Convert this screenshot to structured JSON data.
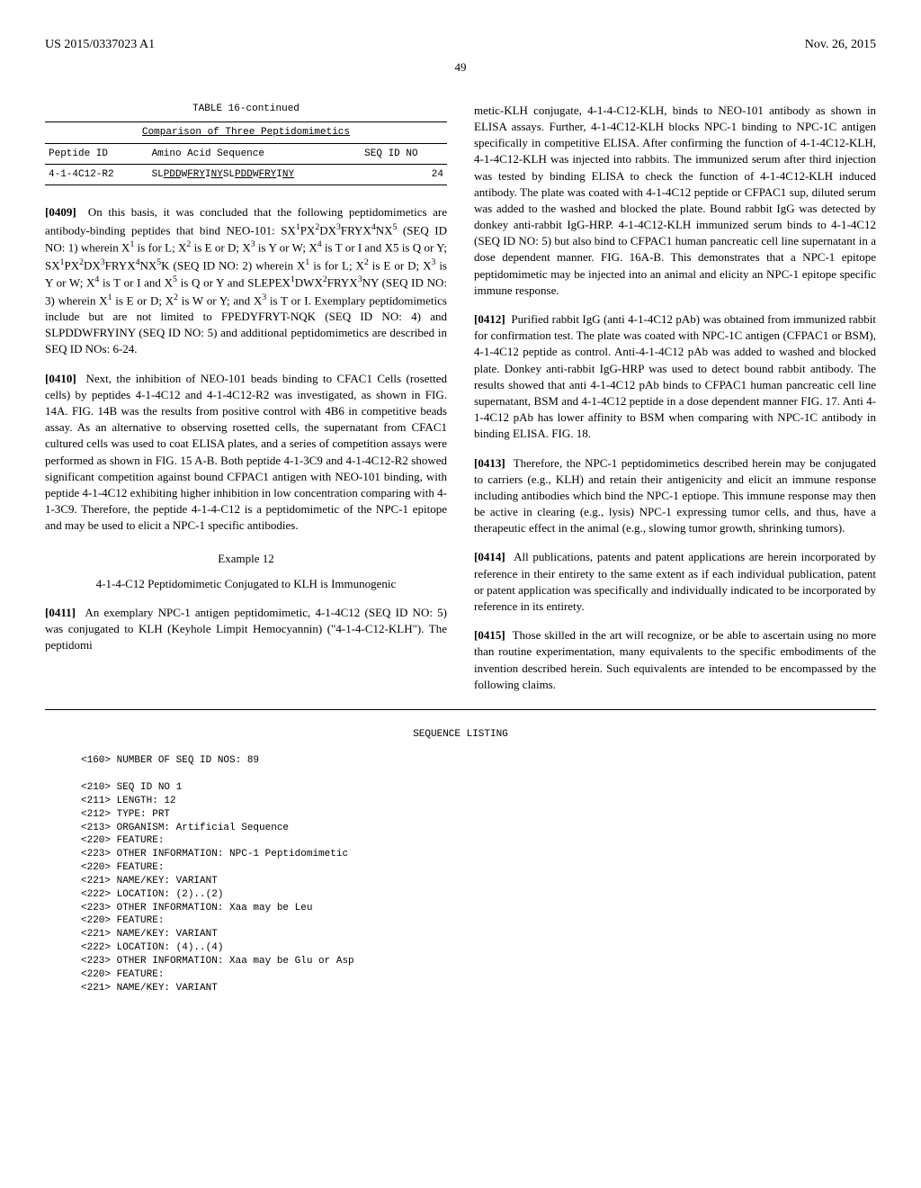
{
  "header": {
    "pub_number": "US 2015/0337023 A1",
    "pub_date": "Nov. 26, 2015",
    "page": "49"
  },
  "table16": {
    "title": "TABLE 16-continued",
    "caption": "Comparison of Three Peptidomimetics",
    "col1": "Peptide ID",
    "col2": "Amino Acid Sequence",
    "col3": "SEQ ID NO",
    "row_id": "4-1-4C12-R2",
    "row_seq_prefix": "SL",
    "row_seq_u1": "PDD",
    "row_seq_mid1": "W",
    "row_seq_u2": "FRY",
    "row_seq_mid2": "I",
    "row_seq_u3": "NY",
    "row_seq_mid3": "SL",
    "row_seq_u4": "PDD",
    "row_seq_mid4": "W",
    "row_seq_u5": "FRY",
    "row_seq_mid5": "I",
    "row_seq_u6": "NY",
    "row_no": "24"
  },
  "p0409": {
    "num": "[0409]",
    "t1": "On this basis, it was concluded that the following peptidomimetics are antibody-binding peptides that bind NEO-101: SX",
    "t2": "PX",
    "t3": "DX",
    "t4": "FRYX",
    "t5": "NX",
    "t6": " (SEQ ID NO: 1) wherein X",
    "t7": " is for L; X",
    "t8": " is E or D; X",
    "t9": " is Y or W; X",
    "t10": " is T or I and X5 is Q or Y; SX",
    "t11": "PX",
    "t12": "DX",
    "t13": "FRYX",
    "t14": "NX",
    "t15": "K (SEQ ID NO: 2) wherein X",
    "t16": " is for L; X",
    "t17": " is E or D; X",
    "t18": " is Y or W; X",
    "t19": " is T or I and X",
    "t20": " is Q or Y and SLEPEX",
    "t21": "DWX",
    "t22": "FRYX",
    "t23": "NY (SEQ ID NO: 3) wherein X",
    "t24": " is E or D; X",
    "t25": " is W or Y; and X",
    "t26": " is T or I. Exemplary peptidomimetics include but are not limited to FPEDYFRYT-NQK (SEQ ID NO: 4) and SLPDDWFRYINY (SEQ ID NO: 5) and additional peptidomimetics are described in SEQ ID NOs: 6-24."
  },
  "p0410": {
    "num": "[0410]",
    "text": "Next, the inhibition of NEO-101 beads binding to CFAC1 Cells (rosetted cells) by peptides 4-1-4C12 and 4-1-4C12-R2 was investigated, as shown in FIG. 14A. FIG. 14B was the results from positive control with 4B6 in competitive beads assay. As an alternative to observing rosetted cells, the supernatant from CFAC1 cultured cells was used to coat ELISA plates, and a series of competition assays were performed as shown in FIG. 15 A-B. Both peptide 4-1-3C9 and 4-1-4C12-R2 showed significant competition against bound CFPAC1 antigen with NEO-101 binding, with peptide 4-1-4C12 exhibiting higher inhibition in low concentration comparing with 4-1-3C9. Therefore, the peptide 4-1-4-C12 is a peptidomimetic of the NPC-1 epitope and may be used to elicit a NPC-1 specific antibodies."
  },
  "example12": {
    "label": "Example 12",
    "title": "4-1-4-C12 Peptidomimetic Conjugated to KLH is Immunogenic"
  },
  "p0411": {
    "num": "[0411]",
    "text": "An exemplary NPC-1 antigen peptidomimetic, 4-1-4C12 (SEQ ID NO: 5) was conjugated to KLH (Keyhole Limpit Hemocyannin) (\"4-1-4-C12-KLH\"). The peptidomi"
  },
  "p0411b": {
    "text": "metic-KLH conjugate, 4-1-4-C12-KLH, binds to NEO-101 antibody as shown in ELISA assays. Further, 4-1-4C12-KLH blocks NPC-1 binding to NPC-1C antigen specifically in competitive ELISA. After confirming the function of 4-1-4C12-KLH, 4-1-4C12-KLH was injected into rabbits. The immunized serum after third injection was tested by binding ELISA to check the function of 4-1-4C12-KLH induced antibody. The plate was coated with 4-1-4C12 peptide or CFPAC1 sup, diluted serum was added to the washed and blocked the plate. Bound rabbit IgG was detected by donkey anti-rabbit IgG-HRP. 4-1-4C12-KLH immunized serum binds to 4-1-4C12 (SEQ ID NO: 5) but also bind to CFPAC1 human pancreatic cell line supernatant in a dose dependent manner. FIG. 16A-B. This demonstrates that a NPC-1 epitope peptidomimetic may be injected into an animal and elicity an NPC-1 epitope specific immune response."
  },
  "p0412": {
    "num": "[0412]",
    "text": "Purified rabbit IgG (anti 4-1-4C12 pAb) was obtained from immunized rabbit for confirmation test. The plate was coated with NPC-1C antigen (CFPAC1 or BSM), 4-1-4C12 peptide as control. Anti-4-1-4C12 pAb was added to washed and blocked plate. Donkey anti-rabbit IgG-HRP was used to detect bound rabbit antibody. The results showed that anti 4-1-4C12 pAb binds to CFPAC1 human pancreatic cell line supernatant, BSM and 4-1-4C12 peptide in a dose dependent manner FIG. 17. Anti 4-1-4C12 pAb has lower affinity to BSM when comparing with NPC-1C antibody in binding ELISA. FIG. 18."
  },
  "p0413": {
    "num": "[0413]",
    "text": "Therefore, the NPC-1 peptidomimetics described herein may be conjugated to carriers (e.g., KLH) and retain their antigenicity and elicit an immune response including antibodies which bind the NPC-1 eptiope. This immune response may then be active in clearing (e.g., lysis) NPC-1 expressing tumor cells, and thus, have a therapeutic effect in the animal (e.g., slowing tumor growth, shrinking tumors)."
  },
  "p0414": {
    "num": "[0414]",
    "text": "All publications, patents and patent applications are herein incorporated by reference in their entirety to the same extent as if each individual publication, patent or patent application was specifically and individually indicated to be incorporated by reference in its entirety."
  },
  "p0415": {
    "num": "[0415]",
    "text": "Those skilled in the art will recognize, or be able to ascertain using no more than routine experimentation, many equivalents to the specific embodiments of the invention described herein. Such equivalents are intended to be encompassed by the following claims."
  },
  "seq_label": "SEQUENCE LISTING",
  "seq_lines": [
    "<160> NUMBER OF SEQ ID NOS: 89",
    "",
    "<210> SEQ ID NO 1",
    "<211> LENGTH: 12",
    "<212> TYPE: PRT",
    "<213> ORGANISM: Artificial Sequence",
    "<220> FEATURE:",
    "<223> OTHER INFORMATION: NPC-1 Peptidomimetic",
    "<220> FEATURE:",
    "<221> NAME/KEY: VARIANT",
    "<222> LOCATION: (2)..(2)",
    "<223> OTHER INFORMATION: Xaa may be Leu",
    "<220> FEATURE:",
    "<221> NAME/KEY: VARIANT",
    "<222> LOCATION: (4)..(4)",
    "<223> OTHER INFORMATION: Xaa may be Glu or Asp",
    "<220> FEATURE:",
    "<221> NAME/KEY: VARIANT"
  ]
}
